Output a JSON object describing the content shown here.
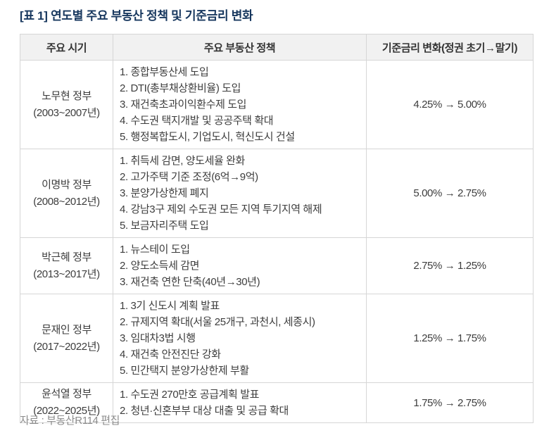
{
  "title": "[표 1] 연도별 주요 부동산 정책 및 기준금리 변화",
  "colors": {
    "title_navy": "#17375e",
    "header_bg": "#f1f1f1",
    "border": "#d6d6d6",
    "body_text": "#3d3d3d",
    "footer_gray": "#8c8c8c"
  },
  "table": {
    "headers": [
      "주요 시기",
      "주요 부동산 정책",
      "기준금리 변화(정권 초기→말기)"
    ],
    "rows": [
      {
        "period_name": "노무현 정부",
        "period_years": "(2003~2007년)",
        "policies": [
          "1. 종합부동산세 도입",
          "2. DTI(총부채상환비율) 도입",
          "3. 재건축초과이익환수제 도입",
          "4. 수도권 택지개발 및 공공주택 확대",
          "5. 행정복합도시, 기업도시, 혁신도시 건설"
        ],
        "rate_change": "4.25% → 5.00%"
      },
      {
        "period_name": "이명박 정부",
        "period_years": "(2008~2012년)",
        "policies": [
          "1. 취득세 감면, 양도세율 완화",
          "2. 고가주택 기준 조정(6억→9억)",
          "3. 분양가상한제 폐지",
          "4. 강남3구 제외 수도권 모든 지역 투기지역 해제",
          "5. 보금자리주택 도입"
        ],
        "rate_change": "5.00% → 2.75%"
      },
      {
        "period_name": "박근혜 정부",
        "period_years": "(2013~2017년)",
        "policies": [
          "1. 뉴스테이 도입",
          "2. 양도소득세 감면",
          "3. 재건축 연한 단축(40년→30년)"
        ],
        "rate_change": "2.75% → 1.25%"
      },
      {
        "period_name": "문재인 정부",
        "period_years": "(2017~2022년)",
        "policies": [
          "1. 3기 신도시 계획 발표",
          "2. 규제지역 확대(서울 25개구, 과천시, 세종시)",
          "3. 임대차3법 시행",
          "4. 재건축 안전진단 강화",
          "5. 민간택지 분양가상한제 부활"
        ],
        "rate_change": "1.25% → 1.75%"
      },
      {
        "period_name": "윤석열 정부",
        "period_years": "(2022~2025년)",
        "policies": [
          "1. 수도권 270만호 공급계획 발표",
          "2. 청년·신혼부부 대상 대출 및 공급 확대"
        ],
        "rate_change": "1.75% → 2.75%"
      }
    ]
  },
  "footer": {
    "source": "자료 : 부동산R114 편집"
  }
}
